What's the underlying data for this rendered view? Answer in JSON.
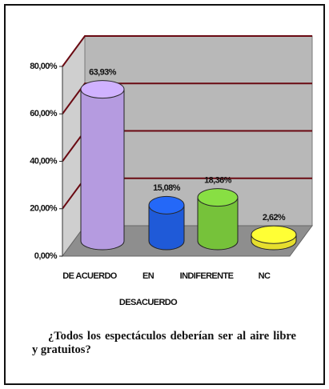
{
  "chart_data": {
    "type": "cylinder",
    "categories": [
      "DE ACUERDO",
      "EN DESACUERDO",
      "INDIFERENTE",
      "NC"
    ],
    "values": [
      63.93,
      15.08,
      18.36,
      2.62
    ],
    "value_labels": [
      "63,93%",
      "15,08%",
      "18,36%",
      "2,62%"
    ],
    "colors": [
      "#b59be0",
      "#1f5ad8",
      "#76c23a",
      "#e6de2e"
    ],
    "ylim": [
      0,
      80
    ],
    "yticks": [
      {
        "value": 0,
        "label": "0,00%"
      },
      {
        "value": 20,
        "label": "20,00%"
      },
      {
        "value": 40,
        "label": "40,00%"
      },
      {
        "value": 60,
        "label": "60,00%"
      },
      {
        "value": 80,
        "label": "80,00%"
      }
    ],
    "grid": true,
    "caption": "¿Todos los espectáculos deberían ser al aire libre y gratuitos?"
  }
}
